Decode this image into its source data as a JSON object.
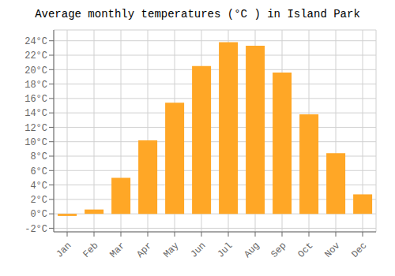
{
  "chart_data": {
    "type": "bar",
    "title": "Average monthly temperatures (°C ) in Island Park",
    "categories": [
      "Jan",
      "Feb",
      "Mar",
      "Apr",
      "May",
      "Jun",
      "Jul",
      "Aug",
      "Sep",
      "Oct",
      "Nov",
      "Dec"
    ],
    "values": [
      -0.3,
      0.6,
      5.0,
      10.2,
      15.4,
      20.5,
      23.8,
      23.3,
      19.6,
      13.8,
      8.4,
      2.7
    ],
    "color": "#FFA726",
    "ylim": [
      -2.5,
      25.5
    ],
    "yticks": [
      {
        "value": -2,
        "label": "-2°C"
      },
      {
        "value": 0,
        "label": "0°C"
      },
      {
        "value": 2,
        "label": "2°C"
      },
      {
        "value": 4,
        "label": "4°C"
      },
      {
        "value": 6,
        "label": "6°C"
      },
      {
        "value": 8,
        "label": "8°C"
      },
      {
        "value": 10,
        "label": "10°C"
      },
      {
        "value": 12,
        "label": "12°C"
      },
      {
        "value": 14,
        "label": "14°C"
      },
      {
        "value": 16,
        "label": "16°C"
      },
      {
        "value": 18,
        "label": "18°C"
      },
      {
        "value": 20,
        "label": "20°C"
      },
      {
        "value": 22,
        "label": "22°C"
      },
      {
        "value": 24,
        "label": "24°C"
      }
    ],
    "grid": true
  }
}
